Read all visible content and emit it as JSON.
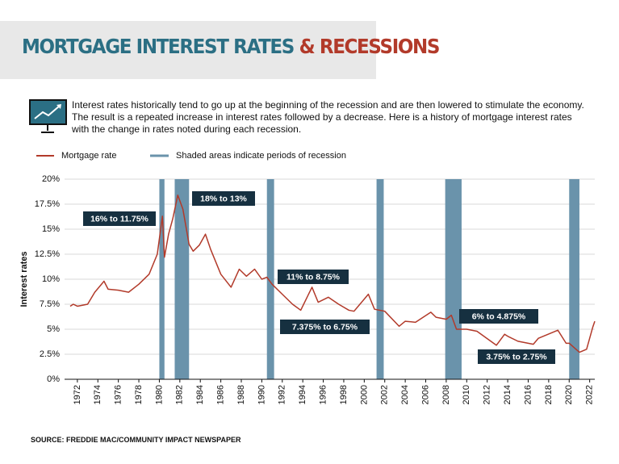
{
  "chart_data": {
    "type": "line",
    "title": "MORTGAGE INTEREST RATES",
    "title_accent": "& RECESSIONS",
    "description": "Interest rates historically tend to go up at the beginning of the recession and are then lowered to stimulate the economy. The result is a repeated increase in interest rates followed by a decrease. Here is a history of mortgage interest rates with the change in rates noted during each recession.",
    "y_label": "Interest rates",
    "source": "SOURCE: FREDDIE MAC/COMMUNITY IMPACT NEWSPAPER",
    "recession_legend": "Shaded areas indicate periods of recession",
    "recession_color": "#6a93ab",
    "recessions": [
      [
        1980.0,
        1980.5
      ],
      [
        1981.5,
        1982.9
      ],
      [
        1990.5,
        1991.2
      ],
      [
        2001.2,
        2001.9
      ],
      [
        2007.9,
        2009.5
      ],
      [
        2020.0,
        2021.0
      ]
    ],
    "annotations": [
      "16% to 11.75%",
      "18% to 13%",
      "11% to 8.75%",
      "7.375% to 6.75%",
      "6% to 4.875%",
      "3.75% to 2.75%"
    ],
    "x": [
      1971.3,
      1971.6,
      1972,
      1973,
      1973.7,
      1974.6,
      1975,
      1976,
      1977,
      1978,
      1979,
      1979.8,
      1980.3,
      1980.5,
      1980.9,
      1981.3,
      1981.8,
      1982.3,
      1982.9,
      1983.3,
      1983.9,
      1984.5,
      1985,
      1986,
      1987,
      1987.8,
      1988.5,
      1989.3,
      1990,
      1990.5,
      1991,
      1992,
      1993,
      1993.8,
      1994.9,
      1995.5,
      1996.5,
      1997.5,
      1998.5,
      1999,
      2000.4,
      2001,
      2002,
      2003.4,
      2004,
      2005,
      2006.5,
      2007,
      2008,
      2008.5,
      2009,
      2010,
      2011,
      2012.9,
      2013.7,
      2014,
      2015,
      2016.5,
      2017,
      2018.9,
      2019.7,
      2020,
      2021,
      2021.7,
      2022.3,
      2022.5
    ],
    "series": [
      {
        "name": "Mortgage rate",
        "color": "#b23a2a",
        "values": [
          7.3,
          7.5,
          7.3,
          7.5,
          8.7,
          9.8,
          9.0,
          8.9,
          8.7,
          9.5,
          10.5,
          12.5,
          16.3,
          12.2,
          14.5,
          16.0,
          18.4,
          17.0,
          13.5,
          12.8,
          13.4,
          14.5,
          13.0,
          10.5,
          9.2,
          11.0,
          10.3,
          11.0,
          10.0,
          10.2,
          9.5,
          8.5,
          7.5,
          6.9,
          9.2,
          7.7,
          8.2,
          7.5,
          6.9,
          6.8,
          8.5,
          7.0,
          6.8,
          5.3,
          5.8,
          5.7,
          6.7,
          6.2,
          6.0,
          6.4,
          5.0,
          5.0,
          4.8,
          3.4,
          4.5,
          4.3,
          3.8,
          3.5,
          4.1,
          4.9,
          3.6,
          3.6,
          2.7,
          3.0,
          5.2,
          5.8
        ]
      }
    ],
    "xlim": [
      1970.75,
      2022.5
    ],
    "xticks": [
      1972,
      1974,
      1976,
      1978,
      1980,
      1982,
      1984,
      1986,
      1988,
      1990,
      1992,
      1994,
      1996,
      1998,
      2000,
      2002,
      2004,
      2006,
      2008,
      2010,
      2012,
      2014,
      2016,
      2018,
      2020,
      2022
    ],
    "ylim": [
      0,
      20
    ],
    "yticks": [
      {
        "value": 0,
        "label": "0%"
      },
      {
        "value": 2.5,
        "label": "2.5%"
      },
      {
        "value": 5,
        "label": "5%"
      },
      {
        "value": 7.5,
        "label": "7.5%"
      },
      {
        "value": 10,
        "label": "10%"
      },
      {
        "value": 12.5,
        "label": "12.5%"
      },
      {
        "value": 15,
        "label": "15%"
      },
      {
        "value": 17.5,
        "label": "17.5%"
      },
      {
        "value": 20,
        "label": "20%"
      }
    ],
    "grid": true
  }
}
